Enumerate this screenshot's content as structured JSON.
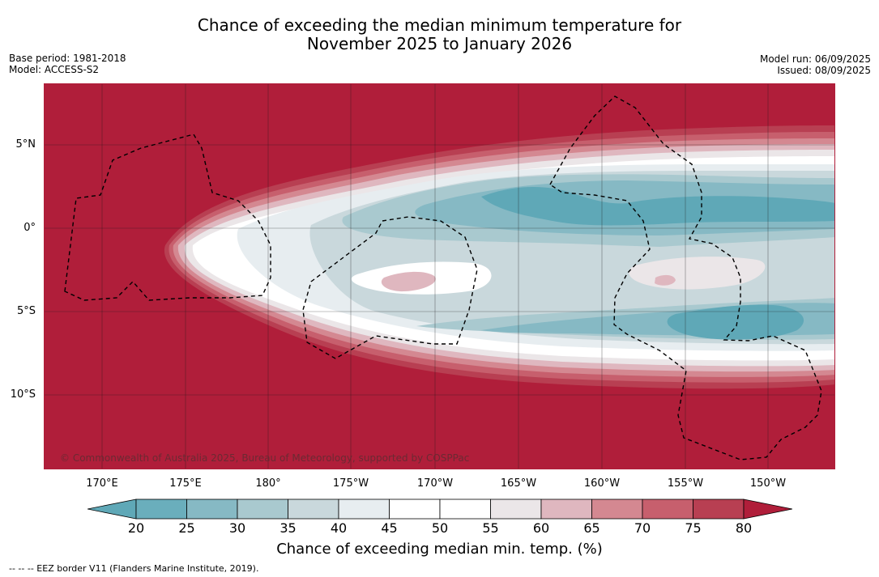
{
  "title_line1": "Chance of exceeding the median minimum temperature for",
  "title_line2": "November 2025 to January 2026",
  "base_period": "Base period: 1981-2018",
  "model": "Model: ACCESS-S2",
  "model_run": "Model run: 06/09/2025",
  "issued": "Issued: 08/09/2025",
  "credit": "© Commonwealth of Australia 2025, Bureau of Meteorology, supported by COSPPac",
  "lon_ticks": [
    "170°E",
    "175°E",
    "180°",
    "175°W",
    "170°W",
    "165°W",
    "160°W",
    "155°W",
    "150°W"
  ],
  "lat_ticks": [
    "5°N",
    "0°",
    "5°S",
    "10°S"
  ],
  "colorbar": {
    "title": "Chance of exceeding median min. temp. (%)",
    "ticks": [
      "20",
      "25",
      "30",
      "35",
      "40",
      "45",
      "50",
      "55",
      "60",
      "65",
      "70",
      "75",
      "80"
    ],
    "colors": [
      "#5fa8b7",
      "#6aaebc",
      "#86b9c4",
      "#a9c9cf",
      "#c9d8dc",
      "#e7edf0",
      "#ffffff",
      "#ffffff",
      "#ebe6e8",
      "#dfb7bf",
      "#d48891",
      "#c75f6d",
      "#b83f52",
      "#b01e3a"
    ]
  },
  "footer": "--  --  -- EEZ border V11 (Flanders Marine Institute, 2019)."
}
